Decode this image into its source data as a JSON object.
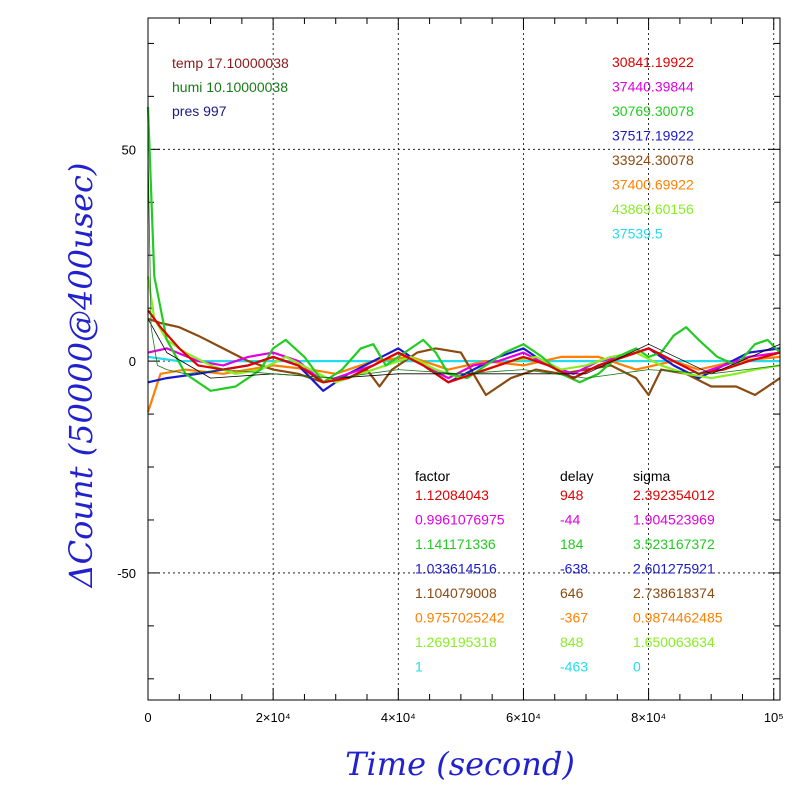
{
  "chart_data": {
    "type": "line",
    "title": "",
    "xlabel": "Time (second)",
    "ylabel": "ΔCount (50000@400usec)",
    "xlim": [
      0,
      101000
    ],
    "ylim": [
      -80,
      81
    ],
    "grid": true,
    "x_ticks": [
      {
        "value": 0,
        "label": "0"
      },
      {
        "value": 20000,
        "label": "2×10⁴"
      },
      {
        "value": 40000,
        "label": "4×10⁴"
      },
      {
        "value": 60000,
        "label": "6×10⁴"
      },
      {
        "value": 80000,
        "label": "8×10⁴"
      },
      {
        "value": 100000,
        "label": "10⁵"
      }
    ],
    "y_ticks": [
      {
        "value": 50,
        "label": "50"
      },
      {
        "value": 0,
        "label": "0"
      },
      {
        "value": -50,
        "label": "-50"
      }
    ],
    "env": [
      {
        "text": "temp 17.10000038",
        "color": "#8b1a1a"
      },
      {
        "text": "humi 10.10000038",
        "color": "#1a7a1a"
      },
      {
        "text": "pres 997",
        "color": "#1a1a80"
      }
    ],
    "means": [
      {
        "text": "30841.19922",
        "color": "#e00000"
      },
      {
        "text": "37440.39844",
        "color": "#e000e0"
      },
      {
        "text": "30769.30078",
        "color": "#22cc22"
      },
      {
        "text": "37517.19922",
        "color": "#1a1acc"
      },
      {
        "text": "33924.30078",
        "color": "#8b4a10"
      },
      {
        "text": "37400.69922",
        "color": "#ff8000"
      },
      {
        "text": "43869.60156",
        "color": "#88ee22"
      },
      {
        "text": "37539.5",
        "color": "#22ddee"
      }
    ],
    "stats_headers": [
      "factor",
      "delay",
      "sigma"
    ],
    "stats": [
      {
        "factor": "1.12084043",
        "delay": "948",
        "sigma": "2.392354012",
        "color": "#e00000"
      },
      {
        "factor": "0.9961076975",
        "delay": "-44",
        "sigma": "1.904523969",
        "color": "#e000e0"
      },
      {
        "factor": "1.141171336",
        "delay": "184",
        "sigma": "3.523167372",
        "color": "#22cc22"
      },
      {
        "factor": "1.033614516",
        "delay": "-638",
        "sigma": "2.601275921",
        "color": "#1a1acc"
      },
      {
        "factor": "1.104079008",
        "delay": "646",
        "sigma": "2.738618374",
        "color": "#8b4a10"
      },
      {
        "factor": "0.9757025242",
        "delay": "-367",
        "sigma": "0.9874462485",
        "color": "#ff8000"
      },
      {
        "factor": "1.269195318",
        "delay": "848",
        "sigma": "1.650063634",
        "color": "#88ee22"
      },
      {
        "factor": "1",
        "delay": "-463",
        "sigma": "0",
        "color": "#22ddee"
      }
    ],
    "series": [
      {
        "color": "#22ddee",
        "x": [
          0,
          5000,
          10000,
          20000,
          30000,
          40000,
          50000,
          60000,
          70000,
          80000,
          90000,
          101000
        ],
        "y": [
          1,
          0,
          0,
          0,
          0,
          0,
          0,
          0,
          0,
          0,
          0,
          0
        ]
      },
      {
        "color": "#ff8000",
        "x": [
          0,
          2000,
          6000,
          12000,
          20000,
          26000,
          30000,
          36000,
          42000,
          48000,
          54000,
          60000,
          66000,
          72000,
          78000,
          84000,
          88000,
          94000,
          101000
        ],
        "y": [
          -12,
          -3,
          -2,
          -3,
          -1,
          -2,
          -3,
          0,
          1,
          -2,
          0,
          -1,
          1,
          1,
          -2,
          0,
          -2,
          0,
          1
        ]
      },
      {
        "color": "#8b4a10",
        "x": [
          0,
          2000,
          5000,
          8000,
          12000,
          16000,
          20000,
          24000,
          28000,
          32000,
          35000,
          37000,
          39000,
          41000,
          43000,
          46000,
          50000,
          54000,
          58000,
          62000,
          66000,
          70000,
          74000,
          78000,
          80000,
          82000,
          86000,
          90000,
          94000,
          97000,
          101000
        ],
        "y": [
          10,
          9,
          8,
          6,
          3,
          0,
          -2,
          -3,
          -5,
          -4,
          -2,
          -6,
          -2,
          0,
          2,
          3,
          2,
          -8,
          -4,
          -2,
          -3,
          -2,
          -1,
          -4,
          -8,
          -2,
          -3,
          -6,
          -6,
          -8,
          -4
        ]
      },
      {
        "color": "#1a1acc",
        "x": [
          0,
          3000,
          8000,
          12000,
          16000,
          20000,
          24000,
          28000,
          32000,
          36000,
          40000,
          44000,
          48000,
          52000,
          56000,
          60000,
          64000,
          68000,
          72000,
          76000,
          80000,
          84000,
          88000,
          92000,
          96000,
          101000
        ],
        "y": [
          -5,
          -4,
          -3,
          -2,
          -1,
          1,
          -1,
          -7,
          -3,
          0,
          3,
          -1,
          -5,
          -2,
          1,
          3,
          -1,
          -4,
          -1,
          1,
          3,
          -1,
          -4,
          -1,
          2,
          3
        ]
      },
      {
        "color": "#e000e0",
        "x": [
          0,
          3000,
          8000,
          12000,
          16000,
          20000,
          24000,
          28000,
          32000,
          36000,
          40000,
          44000,
          48000,
          52000,
          56000,
          60000,
          64000,
          68000,
          72000,
          76000,
          80000,
          84000,
          88000,
          92000,
          96000,
          101000
        ],
        "y": [
          2,
          3,
          0,
          -1,
          1,
          2,
          0,
          -5,
          -3,
          -1,
          2,
          -1,
          -4,
          -1,
          0,
          2,
          -1,
          -3,
          0,
          1,
          3,
          0,
          -3,
          -1,
          1,
          2
        ]
      },
      {
        "color": "#88ee22",
        "x": [
          0,
          1000,
          3000,
          6000,
          10000,
          14000,
          18000,
          22000,
          26000,
          30000,
          34000,
          38000,
          42000,
          46000,
          50000,
          54000,
          58000,
          62000,
          66000,
          70000,
          74000,
          78000,
          82000,
          86000,
          90000,
          94000,
          97000,
          101000
        ],
        "y": [
          20,
          10,
          5,
          2,
          -1,
          -3,
          -2,
          1,
          -2,
          -5,
          -3,
          -1,
          1,
          -2,
          -4,
          -2,
          0,
          1,
          -2,
          -1,
          1,
          2,
          -1,
          -3,
          -4,
          -3,
          -2,
          -1
        ]
      },
      {
        "color": "#22cc22",
        "x": [
          0,
          1000,
          3000,
          6000,
          10000,
          14000,
          18000,
          20000,
          22000,
          25000,
          28000,
          31000,
          34000,
          36000,
          38000,
          40000,
          42000,
          44000,
          46000,
          48000,
          51000,
          54000,
          57000,
          60000,
          63000,
          66000,
          69000,
          72000,
          75000,
          78000,
          80000,
          82000,
          84000,
          86000,
          88000,
          91000,
          94000,
          97000,
          99000,
          101000
        ],
        "y": [
          60,
          20,
          5,
          -3,
          -7,
          -6,
          -2,
          3,
          5,
          1,
          -5,
          -2,
          3,
          4,
          -1,
          1,
          3,
          5,
          2,
          -3,
          -4,
          -1,
          2,
          4,
          1,
          -3,
          -5,
          -3,
          1,
          3,
          1,
          2,
          6,
          8,
          5,
          1,
          -1,
          4,
          5,
          2
        ]
      },
      {
        "color": "#e00000",
        "x": [
          0,
          2000,
          5000,
          8000,
          12000,
          16000,
          20000,
          24000,
          28000,
          32000,
          36000,
          40000,
          44000,
          48000,
          52000,
          56000,
          60000,
          64000,
          68000,
          72000,
          76000,
          80000,
          84000,
          88000,
          92000,
          96000,
          101000
        ],
        "y": [
          12,
          8,
          3,
          -1,
          -2,
          -1,
          1,
          -1,
          -5,
          -4,
          -1,
          2,
          -1,
          -5,
          -3,
          -1,
          1,
          -1,
          -4,
          -1,
          1,
          3,
          0,
          -3,
          -2,
          0,
          2
        ]
      },
      {
        "color": "#000000",
        "width": 0.8,
        "x": [
          0,
          3000,
          10000,
          20000,
          30000,
          40000,
          50000,
          60000,
          70000,
          80000,
          90000,
          101000
        ],
        "y": [
          10,
          2,
          -4,
          -3,
          -4,
          -3,
          -3,
          -3,
          -3,
          4,
          -3,
          4
        ]
      },
      {
        "color": "#1a7a1a",
        "width": 0.8,
        "x": [
          0,
          500,
          1500,
          3000,
          6000,
          12000,
          20000,
          30000,
          40000,
          50000,
          60000,
          70000,
          80000,
          90000,
          101000
        ],
        "y": [
          50,
          8,
          -1,
          -2,
          -3,
          -2,
          -3,
          -4,
          -2,
          -3,
          -2,
          -4,
          -2,
          -3,
          -1
        ]
      }
    ]
  }
}
